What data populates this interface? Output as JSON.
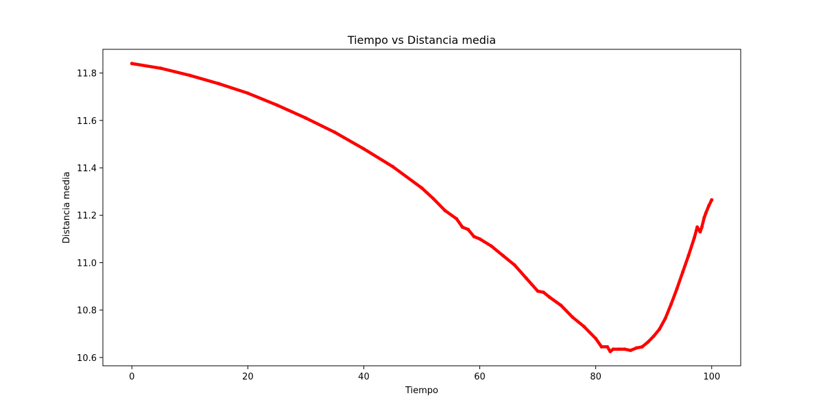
{
  "chart_data": {
    "type": "line",
    "title": "Tiempo vs Distancia media",
    "xlabel": "Tiempo",
    "ylabel": "Distancia media",
    "xlim": [
      -5,
      105
    ],
    "ylim": [
      10.565,
      11.9
    ],
    "xticks": [
      0,
      20,
      40,
      60,
      80,
      100
    ],
    "xtick_labels": [
      "0",
      "20",
      "40",
      "60",
      "80",
      "100"
    ],
    "yticks": [
      10.6,
      10.8,
      11.0,
      11.2,
      11.4,
      11.6,
      11.8
    ],
    "ytick_labels": [
      "10.6",
      "10.8",
      "11.0",
      "11.2",
      "11.4",
      "11.6",
      "11.8"
    ],
    "grid": false,
    "legend": "none",
    "series": [
      {
        "color": "#ff0000",
        "marker": "dot",
        "x": [
          0,
          5,
          10,
          15,
          20,
          25,
          30,
          35,
          40,
          45,
          50,
          52,
          54,
          56,
          57,
          58,
          59,
          60,
          62,
          64,
          66,
          68,
          70,
          71,
          72,
          74,
          76,
          78,
          80,
          81,
          82,
          82.5,
          83,
          84,
          85,
          86,
          87,
          88,
          89,
          90,
          91,
          92,
          93,
          94,
          95,
          96,
          97,
          97.5,
          98,
          98.3,
          98.7,
          99,
          99.5,
          100
        ],
        "y": [
          11.84,
          11.82,
          11.79,
          11.755,
          11.715,
          11.665,
          11.61,
          11.55,
          11.48,
          11.405,
          11.315,
          11.27,
          11.22,
          11.185,
          11.15,
          11.14,
          11.11,
          11.1,
          11.07,
          11.03,
          10.99,
          10.935,
          10.88,
          10.875,
          10.855,
          10.82,
          10.77,
          10.73,
          10.68,
          10.645,
          10.645,
          10.625,
          10.635,
          10.635,
          10.635,
          10.63,
          10.64,
          10.645,
          10.665,
          10.69,
          10.72,
          10.765,
          10.825,
          10.89,
          10.96,
          11.03,
          11.105,
          11.15,
          11.13,
          11.15,
          11.19,
          11.21,
          11.24,
          11.265
        ]
      }
    ]
  }
}
